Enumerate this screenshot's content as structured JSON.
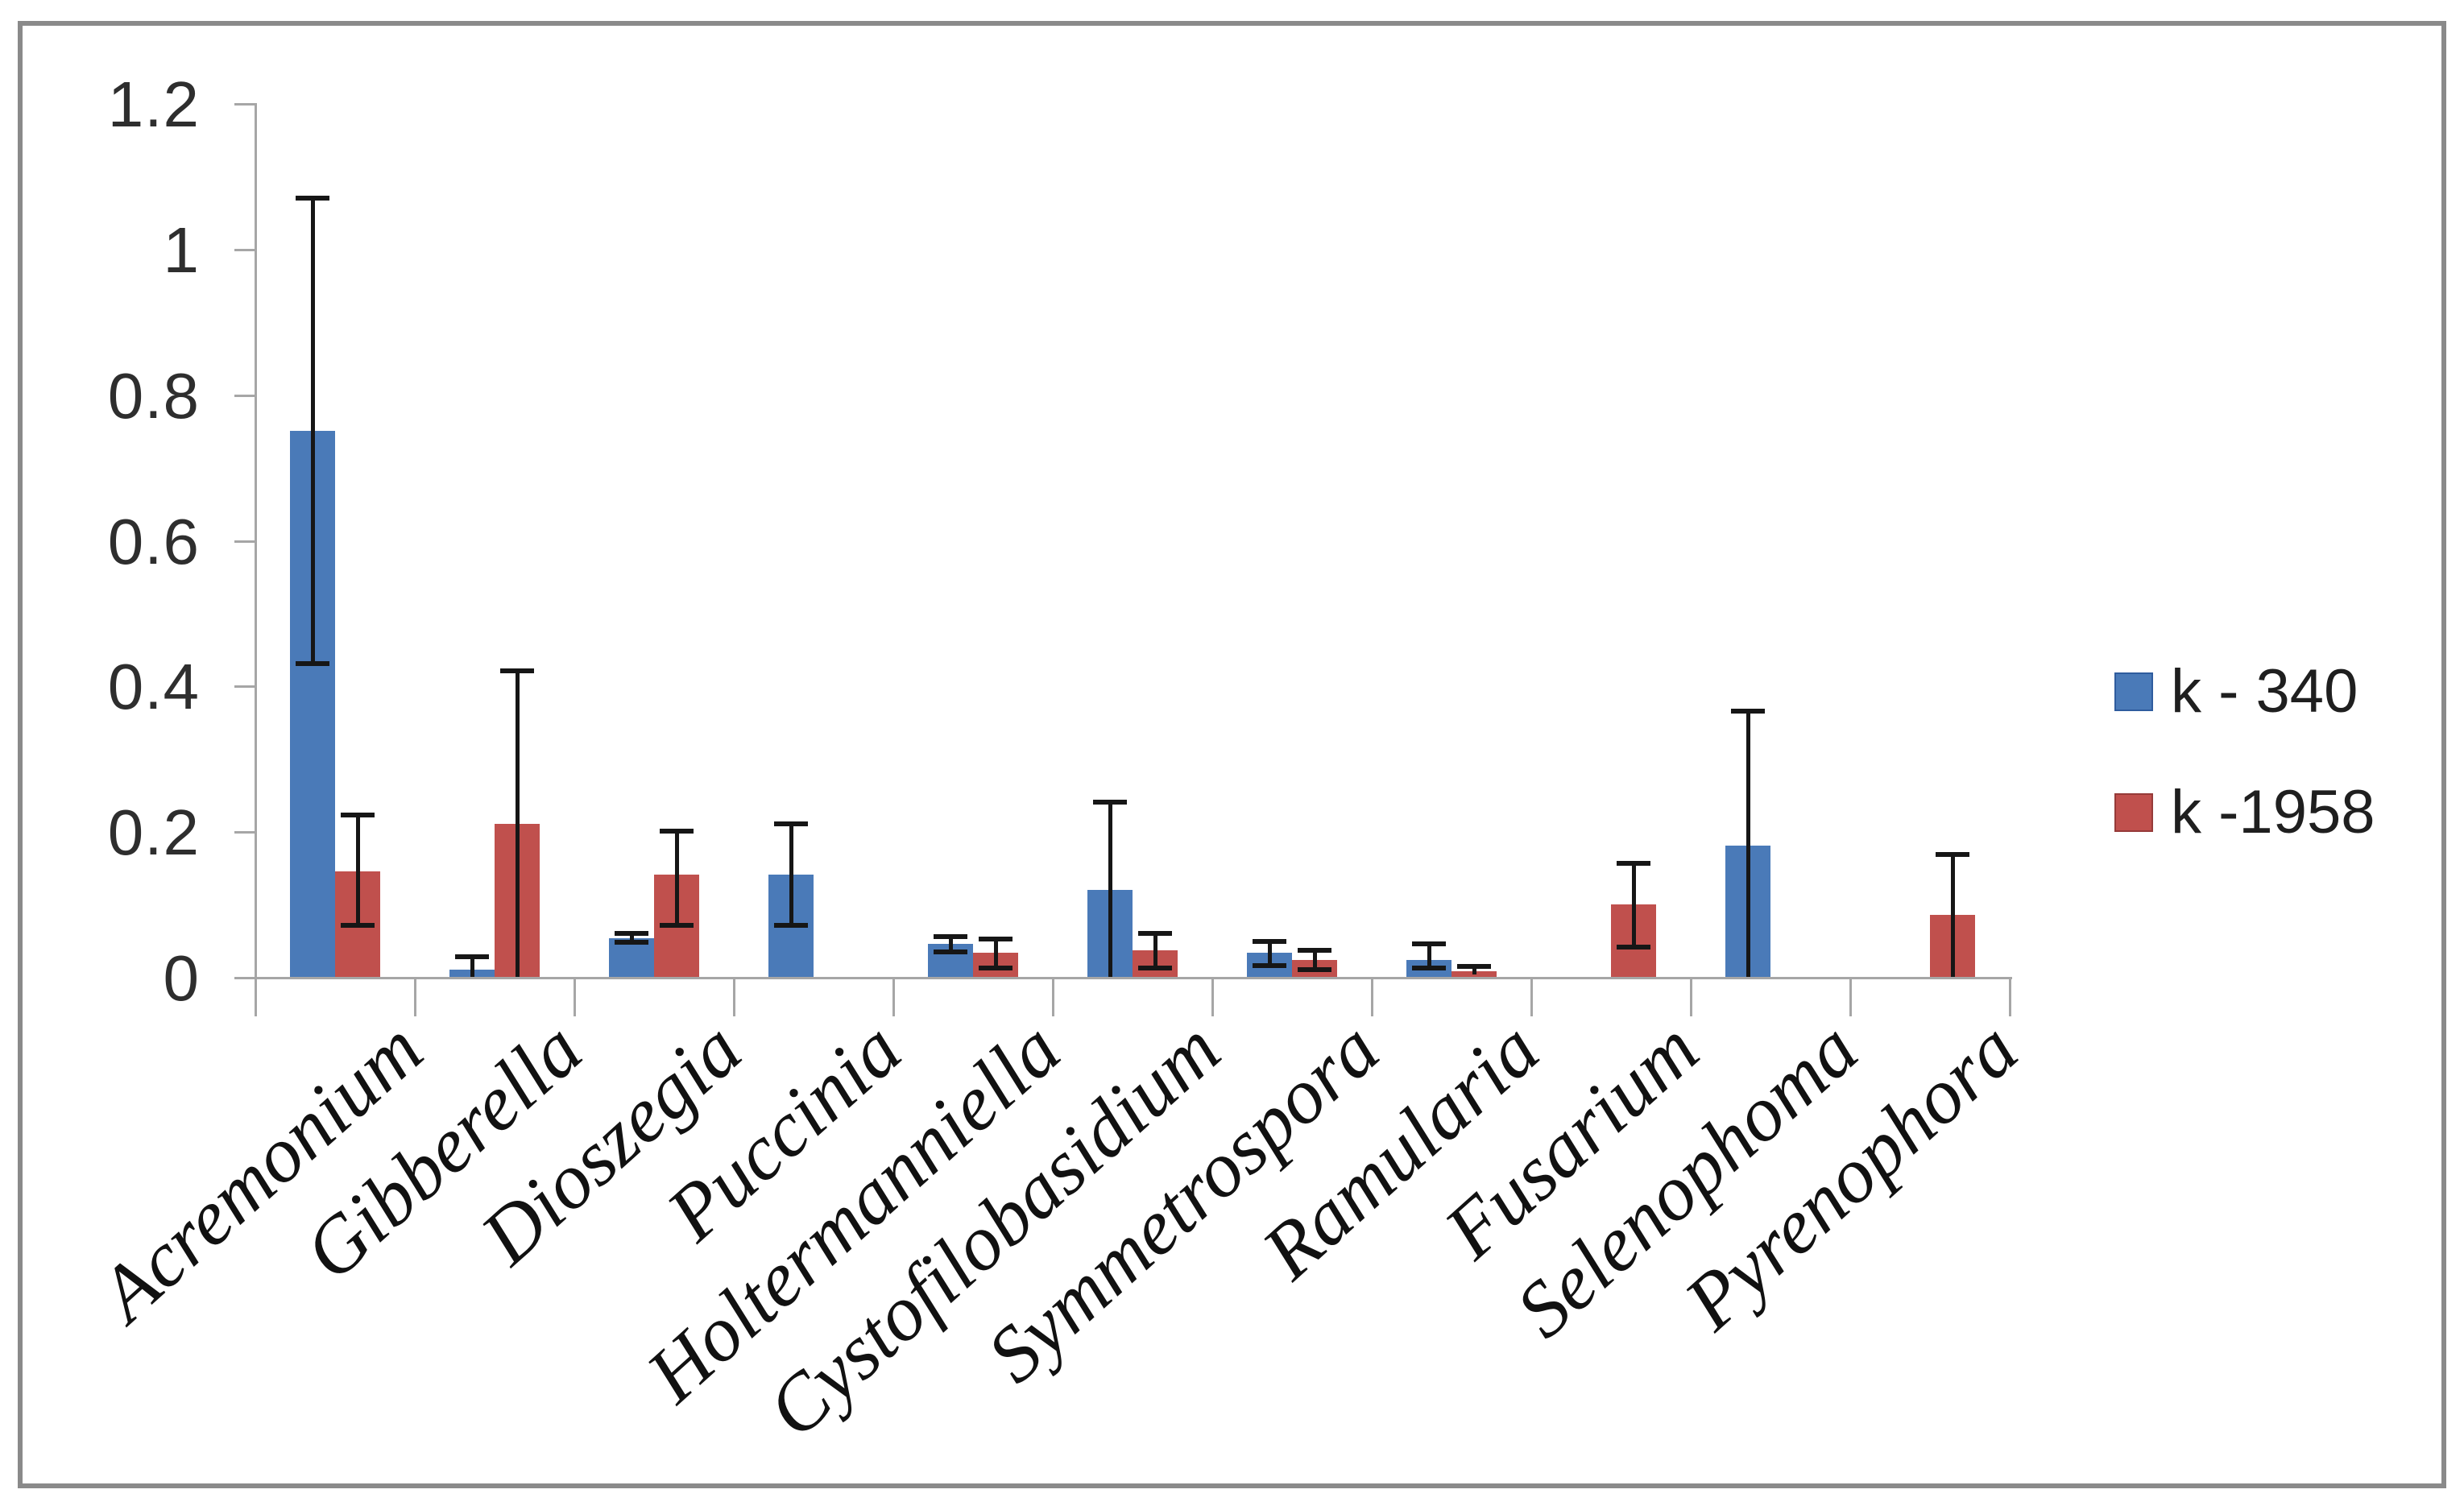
{
  "frame": {
    "border_color": "#8a8a8a",
    "background": "#ffffff"
  },
  "axis": {
    "line_color": "#a6a6a6",
    "error_bar_color": "#161616"
  },
  "legend": {
    "items": [
      {
        "label": "k - 340",
        "color": "#4a7ab8",
        "border": "#2f5c9e"
      },
      {
        "label": "k -1958",
        "color": "#c0504d",
        "border": "#963b39"
      }
    ]
  },
  "chart_data": {
    "type": "bar",
    "title": "",
    "xlabel": "",
    "ylabel": "",
    "ylim": [
      0,
      1.2
    ],
    "ytick_values": [
      0,
      0.2,
      0.4,
      0.6,
      0.8,
      1,
      1.2
    ],
    "ytick_labels": [
      "0",
      "0.2",
      "0.4",
      "0.6",
      "0.8",
      "1",
      "1.2"
    ],
    "grid": false,
    "legend_position": "right",
    "categories": [
      "Acremonium",
      "Gibberella",
      "Dioszegia",
      "Puccinia",
      "Holtermanniella",
      "Cystofilobasidium",
      "Symmetrospora",
      "Ramularia",
      "Fusarium",
      "Selenophoma",
      "Pyrenophora"
    ],
    "series": [
      {
        "name": "k - 340",
        "color": "#4a7ab8",
        "values": [
          0.75,
          0.01,
          0.053,
          0.14,
          0.045,
          0.12,
          0.033,
          0.023,
          null,
          0.18,
          null
        ],
        "error_low": [
          0.43,
          0,
          0.048,
          0.071,
          0.034,
          0,
          0.016,
          0.012,
          null,
          0,
          null
        ],
        "error_high": [
          1.07,
          0.028,
          0.06,
          0.21,
          0.055,
          0.24,
          0.049,
          0.045,
          null,
          0.365,
          null
        ]
      },
      {
        "name": "k -1958",
        "color": "#c0504d",
        "values": [
          0.145,
          0.21,
          0.14,
          null,
          0.033,
          0.036,
          0.023,
          0.008,
          0.1,
          null,
          0.085
        ],
        "error_low": [
          0.071,
          0,
          0.071,
          null,
          0.012,
          0.012,
          0.01,
          0.003,
          0.041,
          null,
          0
        ],
        "error_high": [
          0.222,
          0.42,
          0.2,
          null,
          0.052,
          0.06,
          0.036,
          0.014,
          0.156,
          null,
          0.168
        ]
      }
    ]
  }
}
